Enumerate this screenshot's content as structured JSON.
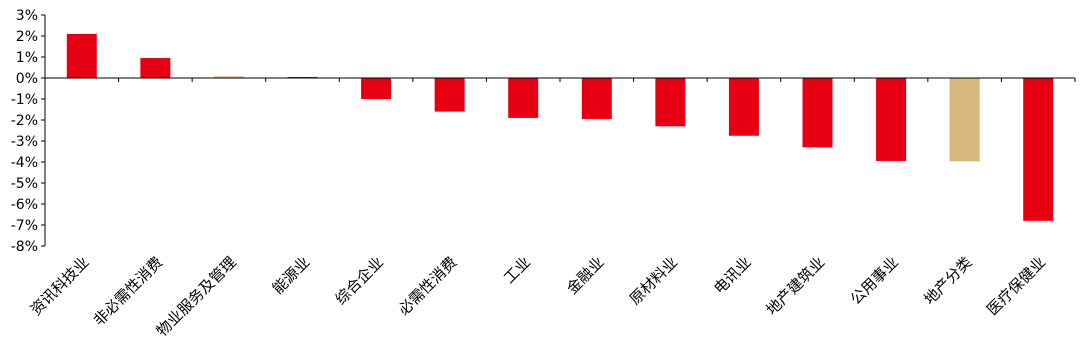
{
  "chart_data": {
    "type": "bar",
    "categories": [
      "资讯科技业",
      "非必需性消费",
      "物业服务及管理",
      "能源业",
      "综合企业",
      "必需性消费",
      "工业",
      "金融业",
      "原材料业",
      "电讯业",
      "地产建筑业",
      "公用事业",
      "地产分类",
      "医疗保健业"
    ],
    "values": [
      2.1,
      0.95,
      0.08,
      0.05,
      -1.0,
      -1.6,
      -1.9,
      -1.95,
      -2.3,
      -2.75,
      -3.3,
      -3.95,
      -3.97,
      -6.8
    ],
    "colors": [
      "#e60012",
      "#e60012",
      "#d9b67d",
      "#e60012",
      "#e60012",
      "#e60012",
      "#e60012",
      "#e60012",
      "#e60012",
      "#e60012",
      "#e60012",
      "#e60012",
      "#d9b67d",
      "#e60012"
    ],
    "ylim": [
      -8,
      3
    ],
    "yticks": [
      "3%",
      "2%",
      "1%",
      "0%",
      "-1%",
      "-2%",
      "-3%",
      "-4%",
      "-5%",
      "-6%",
      "-7%",
      "-8%"
    ],
    "title": "",
    "xlabel": "",
    "ylabel": "",
    "grid": false,
    "legend": "none"
  }
}
